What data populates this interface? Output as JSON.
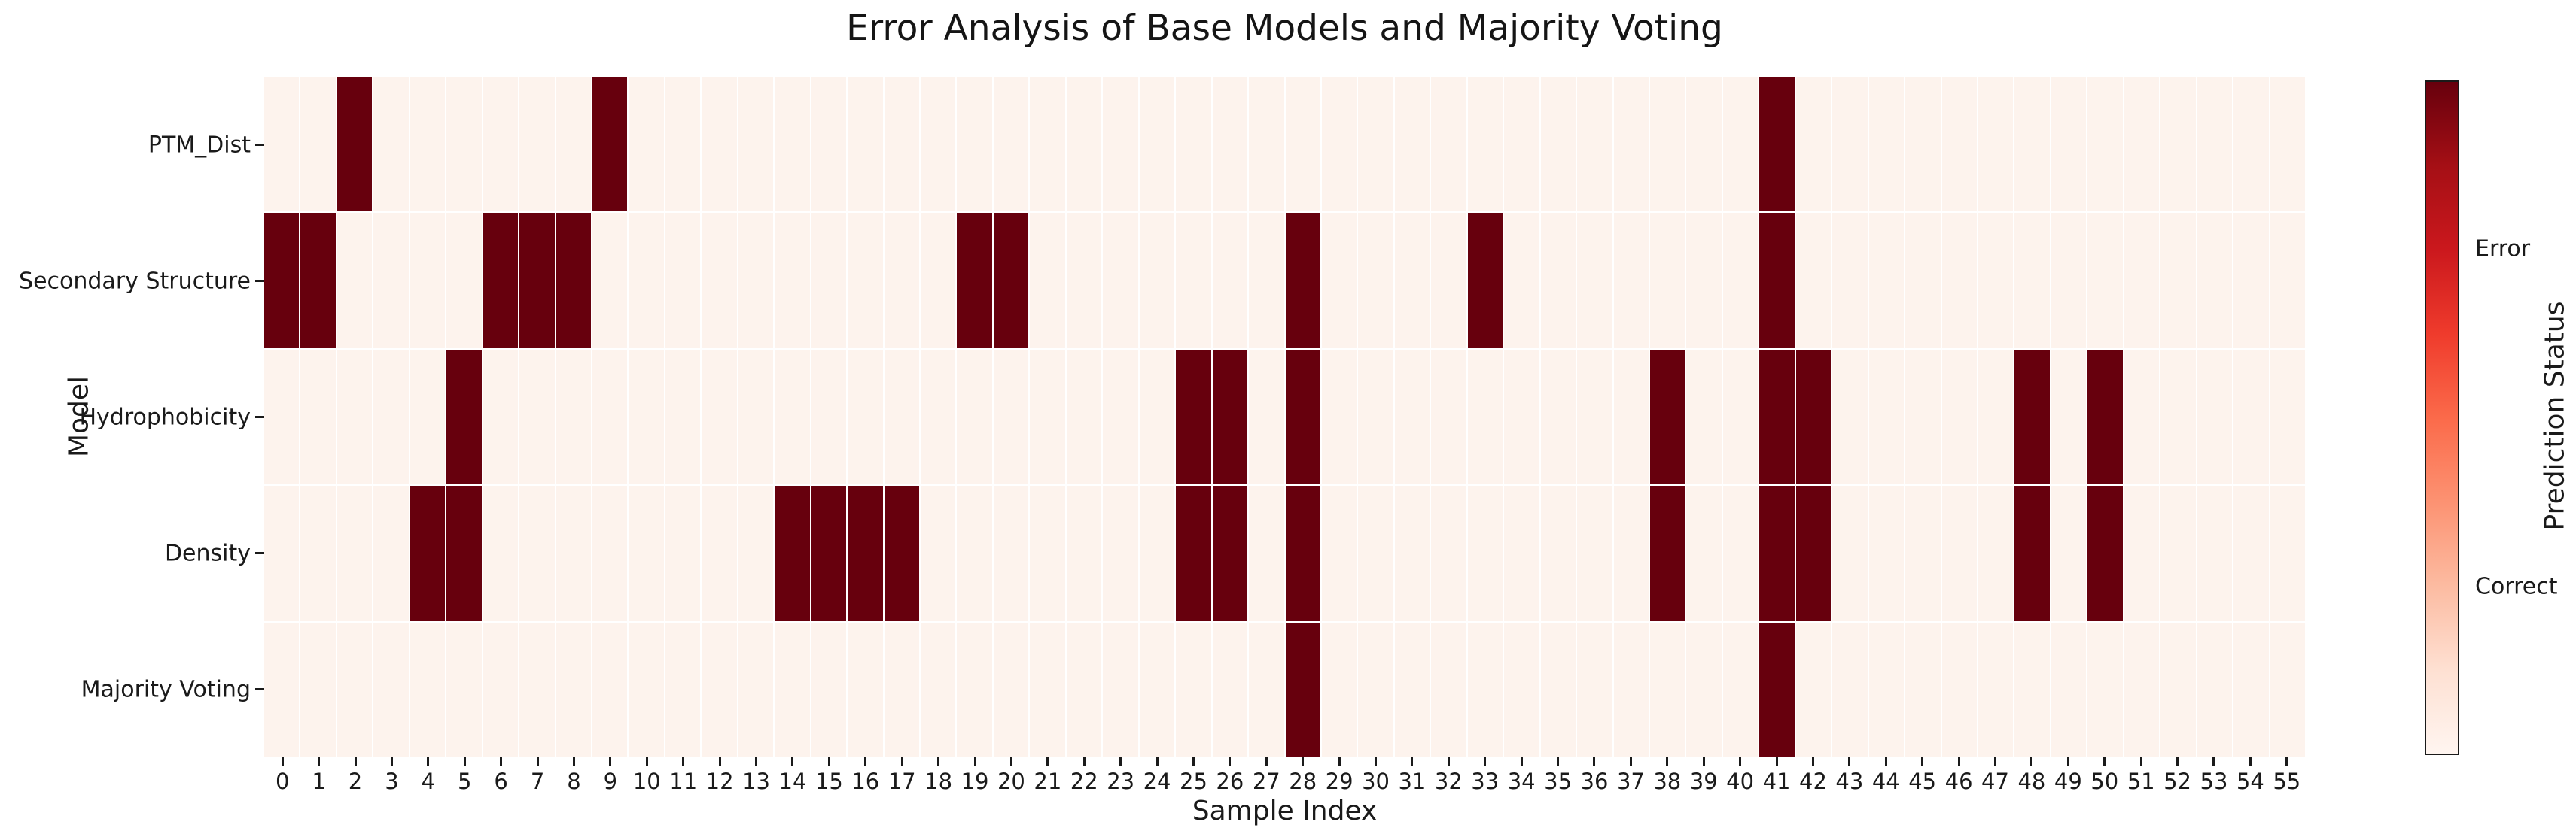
{
  "title": "Error Analysis of Base Models and Majority Voting",
  "chart_data": {
    "type": "heatmap",
    "title": "Error Analysis of Base Models and Majority Voting",
    "xlabel": "Sample Index",
    "ylabel": "Model",
    "n_samples": 56,
    "x_tick_labels": [
      "0",
      "1",
      "2",
      "3",
      "4",
      "5",
      "6",
      "7",
      "8",
      "9",
      "10",
      "11",
      "12",
      "13",
      "14",
      "15",
      "16",
      "17",
      "18",
      "19",
      "20",
      "21",
      "22",
      "23",
      "24",
      "25",
      "26",
      "27",
      "28",
      "29",
      "30",
      "31",
      "32",
      "33",
      "34",
      "35",
      "36",
      "37",
      "38",
      "39",
      "40",
      "41",
      "42",
      "43",
      "44",
      "45",
      "46",
      "47",
      "48",
      "49",
      "50",
      "51",
      "52",
      "53",
      "54",
      "55"
    ],
    "rows": [
      {
        "model": "PTM_Dist",
        "error_samples": [
          2,
          9,
          41
        ]
      },
      {
        "model": "Secondary Structure",
        "error_samples": [
          0,
          1,
          6,
          7,
          8,
          19,
          20,
          28,
          33,
          41
        ]
      },
      {
        "model": "Hydrophobicity",
        "error_samples": [
          5,
          25,
          26,
          28,
          38,
          41,
          42,
          48,
          50
        ]
      },
      {
        "model": "Density",
        "error_samples": [
          4,
          5,
          14,
          15,
          16,
          17,
          25,
          26,
          28,
          38,
          41,
          42,
          48,
          50
        ]
      },
      {
        "model": "Majority Voting",
        "error_samples": [
          28,
          41
        ]
      }
    ],
    "cell_values": {
      "error": 1,
      "correct": 0
    },
    "colors": {
      "error": "#67000d",
      "correct": "#fdf3ed",
      "gridline": "#ffffff",
      "colormap": "Reds",
      "colormap_stops_top_to_bottom": [
        "#67000d",
        "#a50f15",
        "#cb181d",
        "#ef3b2c",
        "#fb6a4a",
        "#fc9272",
        "#fcbba1",
        "#fee0d2",
        "#fff5f0"
      ]
    },
    "colorbar": {
      "label": "Prediction Status",
      "ticks": [
        {
          "label": "Error",
          "value": 0.75
        },
        {
          "label": "Correct",
          "value": 0.25
        }
      ]
    },
    "legend_position": "right",
    "grid": true
  }
}
